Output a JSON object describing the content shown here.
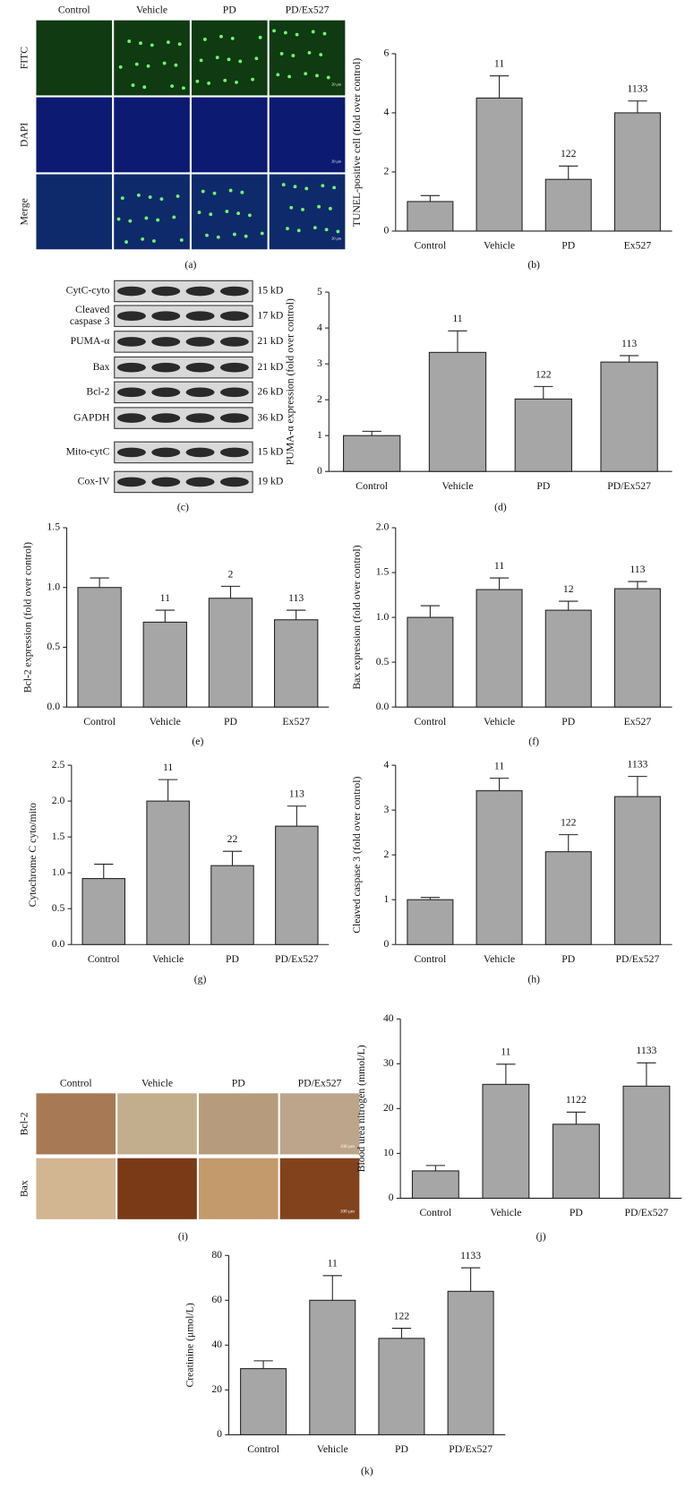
{
  "chart_data": [
    {
      "type": "bar",
      "panel": "(b)",
      "ylabel": "TUNEL-positive cell (fold over control)",
      "categories": [
        "Control",
        "Vehicle",
        "PD",
        "Ex527"
      ],
      "values": [
        1.0,
        4.5,
        1.75,
        4.0
      ],
      "errors": [
        0.2,
        0.75,
        0.45,
        0.4
      ],
      "annotations": [
        null,
        "11",
        "122",
        "1133"
      ],
      "ylim": [
        0,
        6
      ],
      "yticks": [
        0,
        2,
        4,
        6
      ],
      "color": "#a6a6a6"
    },
    {
      "type": "bar",
      "panel": "(d)",
      "ylabel": "PUMA-α expression (fold over control)",
      "categories": [
        "Control",
        "Vehicle",
        "PD",
        "PD/Ex527"
      ],
      "values": [
        1.0,
        3.32,
        2.02,
        3.05
      ],
      "errors": [
        0.12,
        0.6,
        0.35,
        0.18
      ],
      "annotations": [
        null,
        "11",
        "122",
        "113"
      ],
      "ylim": [
        0,
        5
      ],
      "yticks": [
        0,
        1,
        2,
        3,
        4,
        5
      ],
      "color": "#a6a6a6"
    },
    {
      "type": "bar",
      "panel": "(e)",
      "ylabel": "Bcl-2 expression (fold over control)",
      "categories": [
        "Control",
        "Vehicle",
        "PD",
        "Ex527"
      ],
      "values": [
        1.0,
        0.71,
        0.91,
        0.73
      ],
      "errors": [
        0.08,
        0.1,
        0.1,
        0.08
      ],
      "annotations": [
        null,
        "11",
        "2",
        "113"
      ],
      "ylim": [
        0,
        1.5
      ],
      "yticks": [
        {
          "value": 0,
          "label": "0.0"
        },
        0.5,
        {
          "value": 1,
          "label": "1.0"
        },
        1.5
      ],
      "color": "#a6a6a6"
    },
    {
      "type": "bar",
      "panel": "(f)",
      "ylabel": "Bax expression (fold over control)",
      "categories": [
        "Control",
        "Vehicle",
        "PD",
        "Ex527"
      ],
      "values": [
        1.0,
        1.31,
        1.08,
        1.32
      ],
      "errors": [
        0.13,
        0.13,
        0.1,
        0.08
      ],
      "annotations": [
        null,
        "11",
        "12",
        "113"
      ],
      "ylim": [
        0,
        2
      ],
      "yticks": [
        {
          "value": 0,
          "label": "0.0"
        },
        0.5,
        {
          "value": 1,
          "label": "1.0"
        },
        1.5,
        {
          "value": 2,
          "label": "2.0"
        }
      ],
      "color": "#a6a6a6"
    },
    {
      "type": "bar",
      "panel": "(g)",
      "ylabel": "Cytochrome C cyto/mito",
      "categories": [
        "Control",
        "Vehicle",
        "PD",
        "PD/Ex527"
      ],
      "values": [
        0.92,
        2.0,
        1.1,
        1.65
      ],
      "errors": [
        0.2,
        0.3,
        0.2,
        0.28
      ],
      "annotations": [
        null,
        "11",
        "22",
        "113"
      ],
      "ylim": [
        0,
        2.5
      ],
      "yticks": [
        {
          "value": 0,
          "label": "0.0"
        },
        0.5,
        {
          "value": 1,
          "label": "1.0"
        },
        1.5,
        {
          "value": 2,
          "label": "2.0"
        },
        2.5
      ],
      "color": "#a6a6a6"
    },
    {
      "type": "bar",
      "panel": "(h)",
      "ylabel": "Cleaved caspase 3 (fold over control)",
      "categories": [
        "Control",
        "Vehicle",
        "PD",
        "PD/Ex527"
      ],
      "values": [
        1.0,
        3.43,
        2.07,
        3.3
      ],
      "errors": [
        0.05,
        0.28,
        0.38,
        0.45
      ],
      "annotations": [
        null,
        "11",
        "122",
        "1133"
      ],
      "ylim": [
        0,
        4
      ],
      "yticks": [
        0,
        1,
        2,
        3,
        4
      ],
      "color": "#a6a6a6"
    },
    {
      "type": "bar",
      "panel": "(j)",
      "ylabel": "Blood urea nitrogen (mmol/L)",
      "categories": [
        "Control",
        "Vehicle",
        "PD",
        "PD/Ex527"
      ],
      "values": [
        6.1,
        25.4,
        16.5,
        25.0
      ],
      "errors": [
        1.2,
        4.5,
        2.7,
        5.2
      ],
      "annotations": [
        null,
        "11",
        "1122",
        "1133"
      ],
      "ylim": [
        0,
        40
      ],
      "yticks": [
        0,
        10,
        20,
        30,
        40
      ],
      "color": "#a6a6a6"
    },
    {
      "type": "bar",
      "panel": "(k)",
      "ylabel": "Creatinine (μmol/L)",
      "categories": [
        "Control",
        "Vehicle",
        "PD",
        "PD/Ex527"
      ],
      "values": [
        29.5,
        60,
        43,
        64
      ],
      "errors": [
        3.5,
        11,
        4.5,
        10.5
      ],
      "annotations": [
        null,
        "11",
        "122",
        "1133"
      ],
      "ylim": [
        0,
        80
      ],
      "yticks": [
        0,
        20,
        40,
        60,
        80
      ],
      "color": "#a6a6a6"
    }
  ],
  "microscopy": {
    "panel": "(a)",
    "columns": [
      "Control",
      "Vehicle",
      "PD",
      "PD/Ex527"
    ],
    "rows": [
      "FITC",
      "DAPI",
      "Merge"
    ],
    "scale": "20 μm"
  },
  "blots": {
    "panel": "(c)",
    "rows": [
      {
        "name": [
          "CytC-cyto"
        ],
        "size": "15 kD"
      },
      {
        "name": [
          "Cleaved",
          "caspase 3"
        ],
        "size": "17 kD"
      },
      {
        "name": [
          "PUMA-α"
        ],
        "size": "21 kD"
      },
      {
        "name": [
          "Bax"
        ],
        "size": "21 kD"
      },
      {
        "name": [
          "Bcl-2"
        ],
        "size": "26 kD"
      },
      {
        "name": [
          "GAPDH"
        ],
        "size": "36 kD"
      },
      {
        "name": [
          "Mito-cytC"
        ],
        "size": "15 kD"
      },
      {
        "name": [
          "Cox-IV"
        ],
        "size": "19 kD"
      }
    ]
  },
  "ihc": {
    "panel": "(i)",
    "columns": [
      "Control",
      "Vehicle",
      "PD",
      "PD/Ex527"
    ],
    "rows": [
      "Bcl-2",
      "Bax"
    ],
    "scale": "100 μm"
  }
}
